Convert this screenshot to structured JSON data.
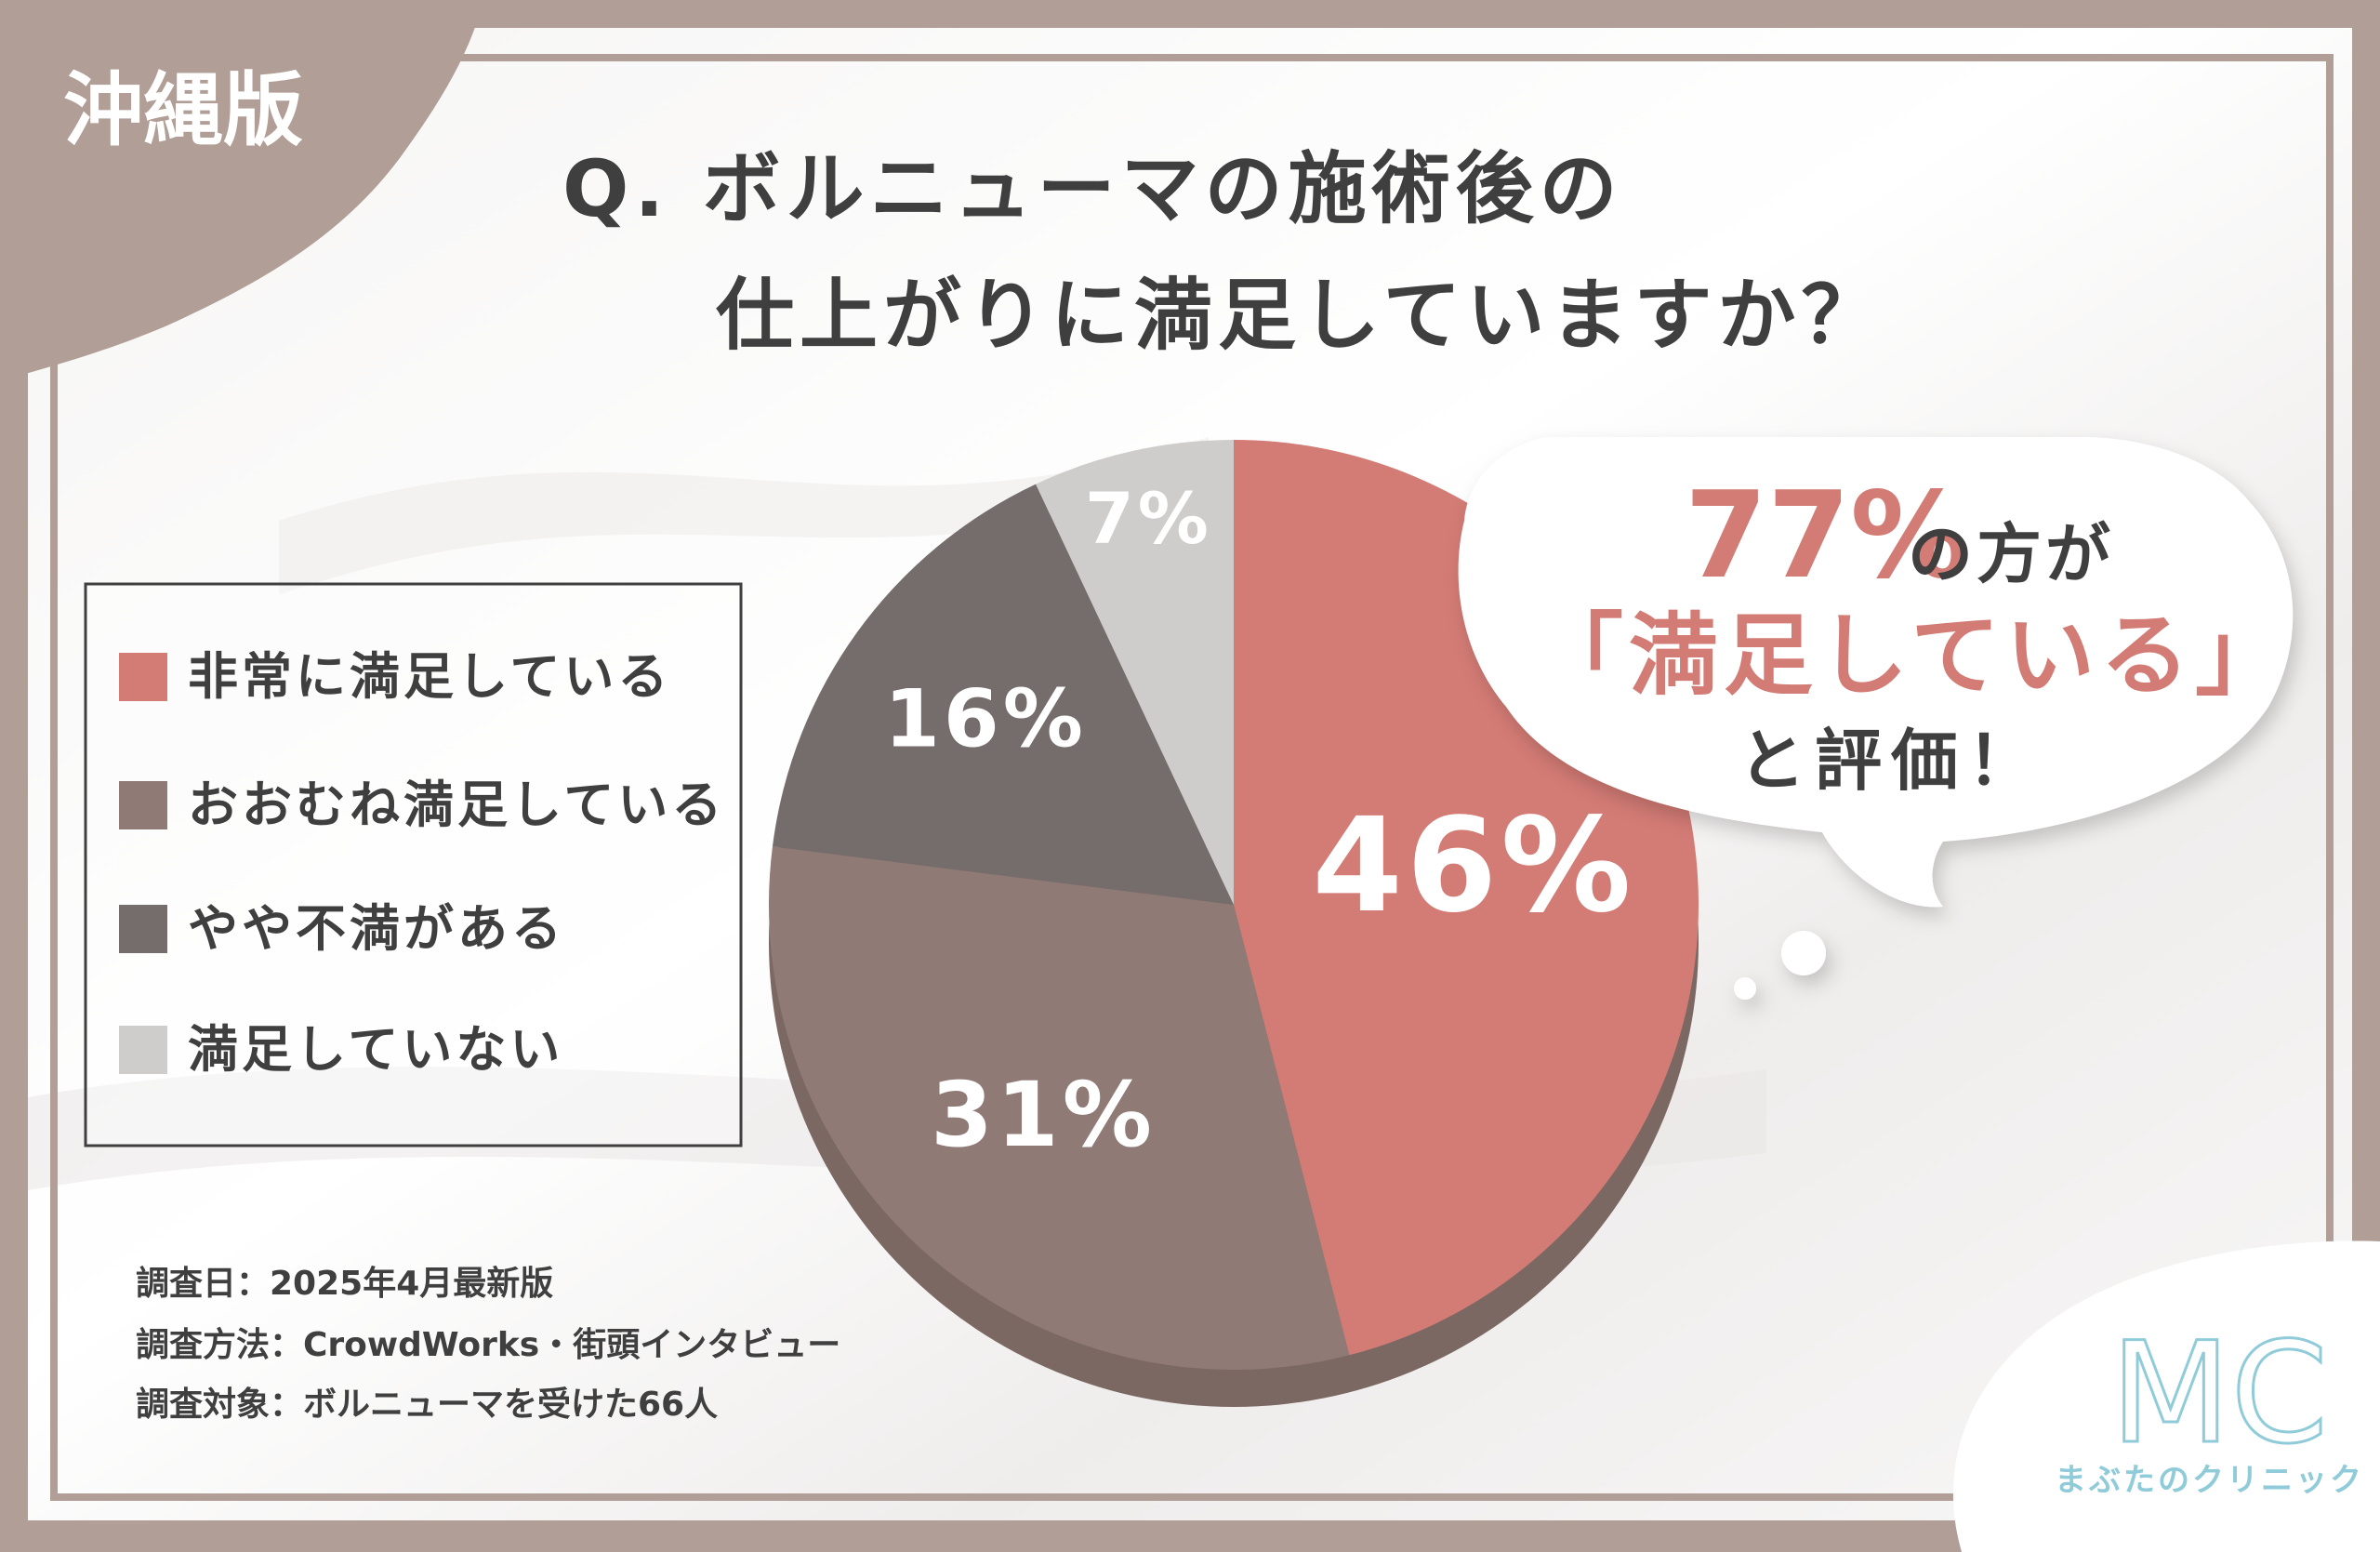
{
  "badge": "沖縄版",
  "question": {
    "line1": "Q. ボルニューマの施術後の",
    "line2": "仕上がりに満足していますか？"
  },
  "bubble": {
    "percent": "77%",
    "line1_rest": "の方が",
    "line2": "「満足している」",
    "line3": "と評価！"
  },
  "chart_data": {
    "type": "pie",
    "slices": [
      {
        "label": "非常に満足している",
        "value": 46,
        "display": "46%",
        "color": "#d37b75"
      },
      {
        "label": "おおむね満足している",
        "value": 31,
        "display": "31%",
        "color": "#8f7a76"
      },
      {
        "label": "やや不満がある",
        "value": 16,
        "display": "16%",
        "color": "#756d6b"
      },
      {
        "label": "満足していない",
        "value": 7,
        "display": "7%",
        "color": "#cfcdcc"
      }
    ],
    "start": "12 o'clock",
    "direction": "clockwise"
  },
  "survey": {
    "date": "調査日：2025年4月最新版",
    "method": "調査方法：CrowdWorks・街頭インタビュー",
    "target": "調査対象：ボルニューマを受けた66人"
  },
  "logo": {
    "letters": "MC",
    "name": "まぶたのクリニック"
  },
  "colors": {
    "frame": "#b19e96",
    "title_text": "#3f3f3f",
    "accent": "#d37b75",
    "pie_shadow": "#7b6863",
    "logo": "#8fcbd9"
  }
}
